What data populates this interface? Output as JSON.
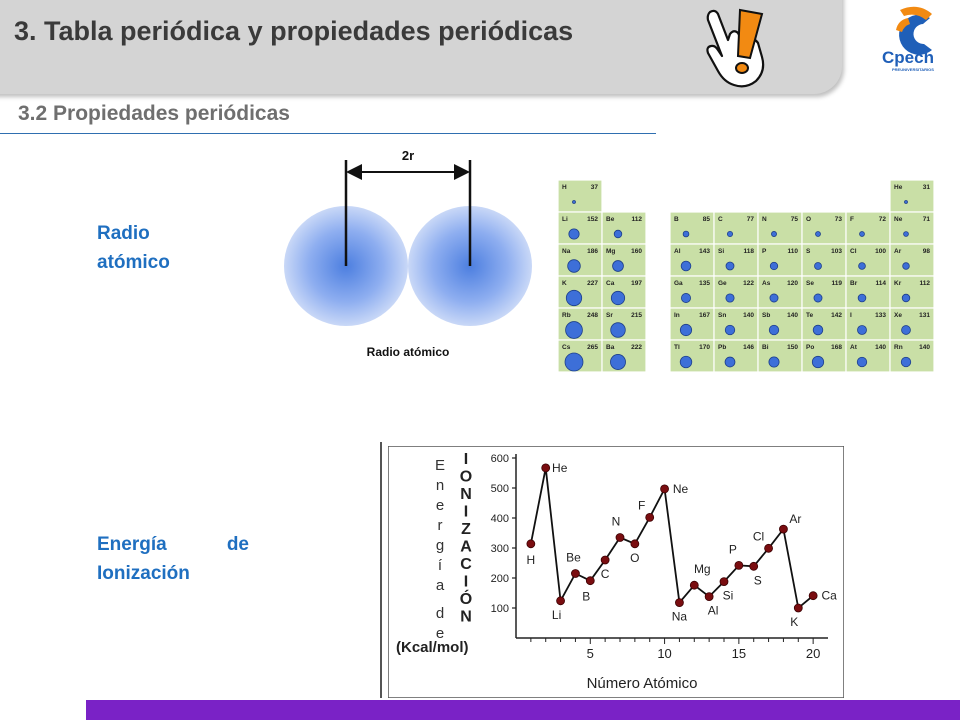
{
  "header": {
    "title": "3. Tabla periódica y propiedades periódicas",
    "subtitle": "3.2 Propiedades periódicas",
    "logo_text": "Cpech",
    "logo_subtext": "PREUNIVERSITARIOS"
  },
  "sections": {
    "radius_label_line1": "Radio",
    "radius_label_line2": "atómico",
    "energy_label_word1": "Energía",
    "energy_label_word2": "de",
    "energy_label_line2": "Ionización"
  },
  "atom_diagram": {
    "distance_label": "2r",
    "caption": "Radio atómico"
  },
  "periodic_table": {
    "left_block": [
      [
        {
          "s": "H",
          "r": 37
        },
        null
      ],
      [
        {
          "s": "Li",
          "r": 152
        },
        {
          "s": "Be",
          "r": 112
        }
      ],
      [
        {
          "s": "Na",
          "r": 186
        },
        {
          "s": "Mg",
          "r": 160
        }
      ],
      [
        {
          "s": "K",
          "r": 227
        },
        {
          "s": "Ca",
          "r": 197
        }
      ],
      [
        {
          "s": "Rb",
          "r": 248
        },
        {
          "s": "Sr",
          "r": 215
        }
      ],
      [
        {
          "s": "Cs",
          "r": 265
        },
        {
          "s": "Ba",
          "r": 222
        }
      ]
    ],
    "right_block": [
      [
        null,
        null,
        null,
        null,
        null,
        {
          "s": "He",
          "r": 31
        }
      ],
      [
        {
          "s": "B",
          "r": 85
        },
        {
          "s": "C",
          "r": 77
        },
        {
          "s": "N",
          "r": 75
        },
        {
          "s": "O",
          "r": 73
        },
        {
          "s": "F",
          "r": 72
        },
        {
          "s": "Ne",
          "r": 71
        }
      ],
      [
        {
          "s": "Al",
          "r": 143
        },
        {
          "s": "Si",
          "r": 118
        },
        {
          "s": "P",
          "r": 110
        },
        {
          "s": "S",
          "r": 103
        },
        {
          "s": "Cl",
          "r": 100
        },
        {
          "s": "Ar",
          "r": 98
        }
      ],
      [
        {
          "s": "Ga",
          "r": 135
        },
        {
          "s": "Ge",
          "r": 122
        },
        {
          "s": "As",
          "r": 120
        },
        {
          "s": "Se",
          "r": 119
        },
        {
          "s": "Br",
          "r": 114
        },
        {
          "s": "Kr",
          "r": 112
        }
      ],
      [
        {
          "s": "In",
          "r": 167
        },
        {
          "s": "Sn",
          "r": 140
        },
        {
          "s": "Sb",
          "r": 140
        },
        {
          "s": "Te",
          "r": 142
        },
        {
          "s": "I",
          "r": 133
        },
        {
          "s": "Xe",
          "r": 131
        }
      ],
      [
        {
          "s": "Tl",
          "r": 170
        },
        {
          "s": "Pb",
          "r": 146
        },
        {
          "s": "Bi",
          "r": 150
        },
        {
          "s": "Po",
          "r": 168
        },
        {
          "s": "At",
          "r": 140
        },
        {
          "s": "Rn",
          "r": 140
        }
      ]
    ]
  },
  "chart_data": {
    "type": "line",
    "xlabel": "Número Atómico",
    "ylabel_letters": [
      "E",
      "n",
      "e",
      "r",
      "g",
      "í",
      "a",
      "d",
      "e"
    ],
    "ylabel_caps": [
      "I",
      "O",
      "N",
      "I",
      "Z",
      "A",
      "C",
      "I",
      "Ó",
      "N"
    ],
    "unit_label": "(Kcal/mol)",
    "ylim": [
      0,
      600
    ],
    "xlim": [
      0,
      21
    ],
    "y_ticks": [
      0,
      100,
      200,
      300,
      400,
      500,
      600
    ],
    "x_ticks": [
      5,
      10,
      15,
      20
    ],
    "points": [
      {
        "x": 1,
        "y": 314,
        "label": "H"
      },
      {
        "x": 2,
        "y": 567,
        "label": "He"
      },
      {
        "x": 3,
        "y": 124,
        "label": "Li"
      },
      {
        "x": 4,
        "y": 215,
        "label": "Be"
      },
      {
        "x": 5,
        "y": 191,
        "label": "B"
      },
      {
        "x": 6,
        "y": 260,
        "label": "C"
      },
      {
        "x": 7,
        "y": 335,
        "label": "N"
      },
      {
        "x": 8,
        "y": 314,
        "label": "O"
      },
      {
        "x": 9,
        "y": 402,
        "label": "F"
      },
      {
        "x": 10,
        "y": 497,
        "label": "Ne"
      },
      {
        "x": 11,
        "y": 118,
        "label": "Na"
      },
      {
        "x": 12,
        "y": 176,
        "label": "Mg"
      },
      {
        "x": 13,
        "y": 138,
        "label": "Al"
      },
      {
        "x": 14,
        "y": 188,
        "label": "Si"
      },
      {
        "x": 15,
        "y": 242,
        "label": "P"
      },
      {
        "x": 16,
        "y": 239,
        "label": "S"
      },
      {
        "x": 17,
        "y": 299,
        "label": "Cl"
      },
      {
        "x": 18,
        "y": 363,
        "label": "Ar"
      },
      {
        "x": 19,
        "y": 100,
        "label": "K"
      },
      {
        "x": 20,
        "y": 141,
        "label": "Ca"
      }
    ]
  },
  "colors": {
    "accent_blue": "#1f6fc0",
    "footer_purple": "#7a22c6",
    "table_green": "#c9dfa6",
    "atom_blue": "#3d6fd8",
    "chart_point": "#7a0d10",
    "warning_orange": "#f28a12"
  }
}
